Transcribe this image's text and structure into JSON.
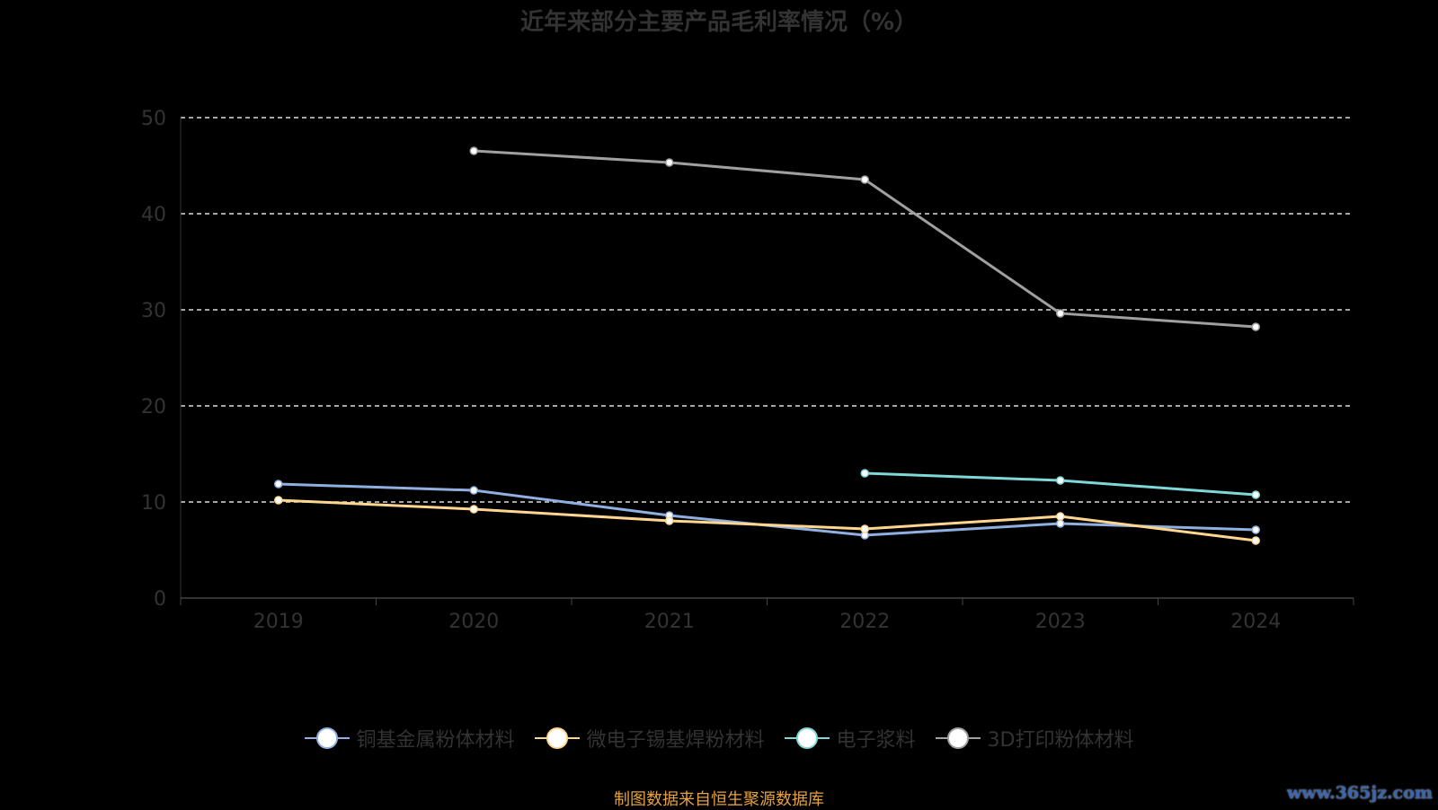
{
  "chart_data": {
    "type": "line",
    "title": "近年来部分主要产品毛利率情况（%）",
    "categories": [
      "2019",
      "2020",
      "2021",
      "2022",
      "2023",
      "2024"
    ],
    "ylim": [
      0,
      50
    ],
    "yticks": [
      0,
      10,
      20,
      30,
      40,
      50
    ],
    "grid": true,
    "legend_position": "bottom",
    "series": [
      {
        "name": "铜基金属粉体材料",
        "color": "#8fb0e0",
        "values": [
          11.87,
          11.21,
          8.6,
          6.54,
          7.76,
          7.1
        ]
      },
      {
        "name": "微电子锡基焊粉材料",
        "color": "#ffd68f",
        "values": [
          10.19,
          9.25,
          8.04,
          7.2,
          8.5,
          5.98
        ]
      },
      {
        "name": "电子浆料",
        "color": "#7fd8d8",
        "values": [
          null,
          null,
          null,
          12.99,
          12.24,
          10.75
        ]
      },
      {
        "name": "3D打印粉体材料",
        "color": "#a0a0a0",
        "values": [
          null,
          46.54,
          45.33,
          43.55,
          29.63,
          28.22
        ]
      }
    ]
  },
  "footer": {
    "source": "制图数据来自恒生聚源数据库",
    "watermark": "www.365jz.com"
  }
}
